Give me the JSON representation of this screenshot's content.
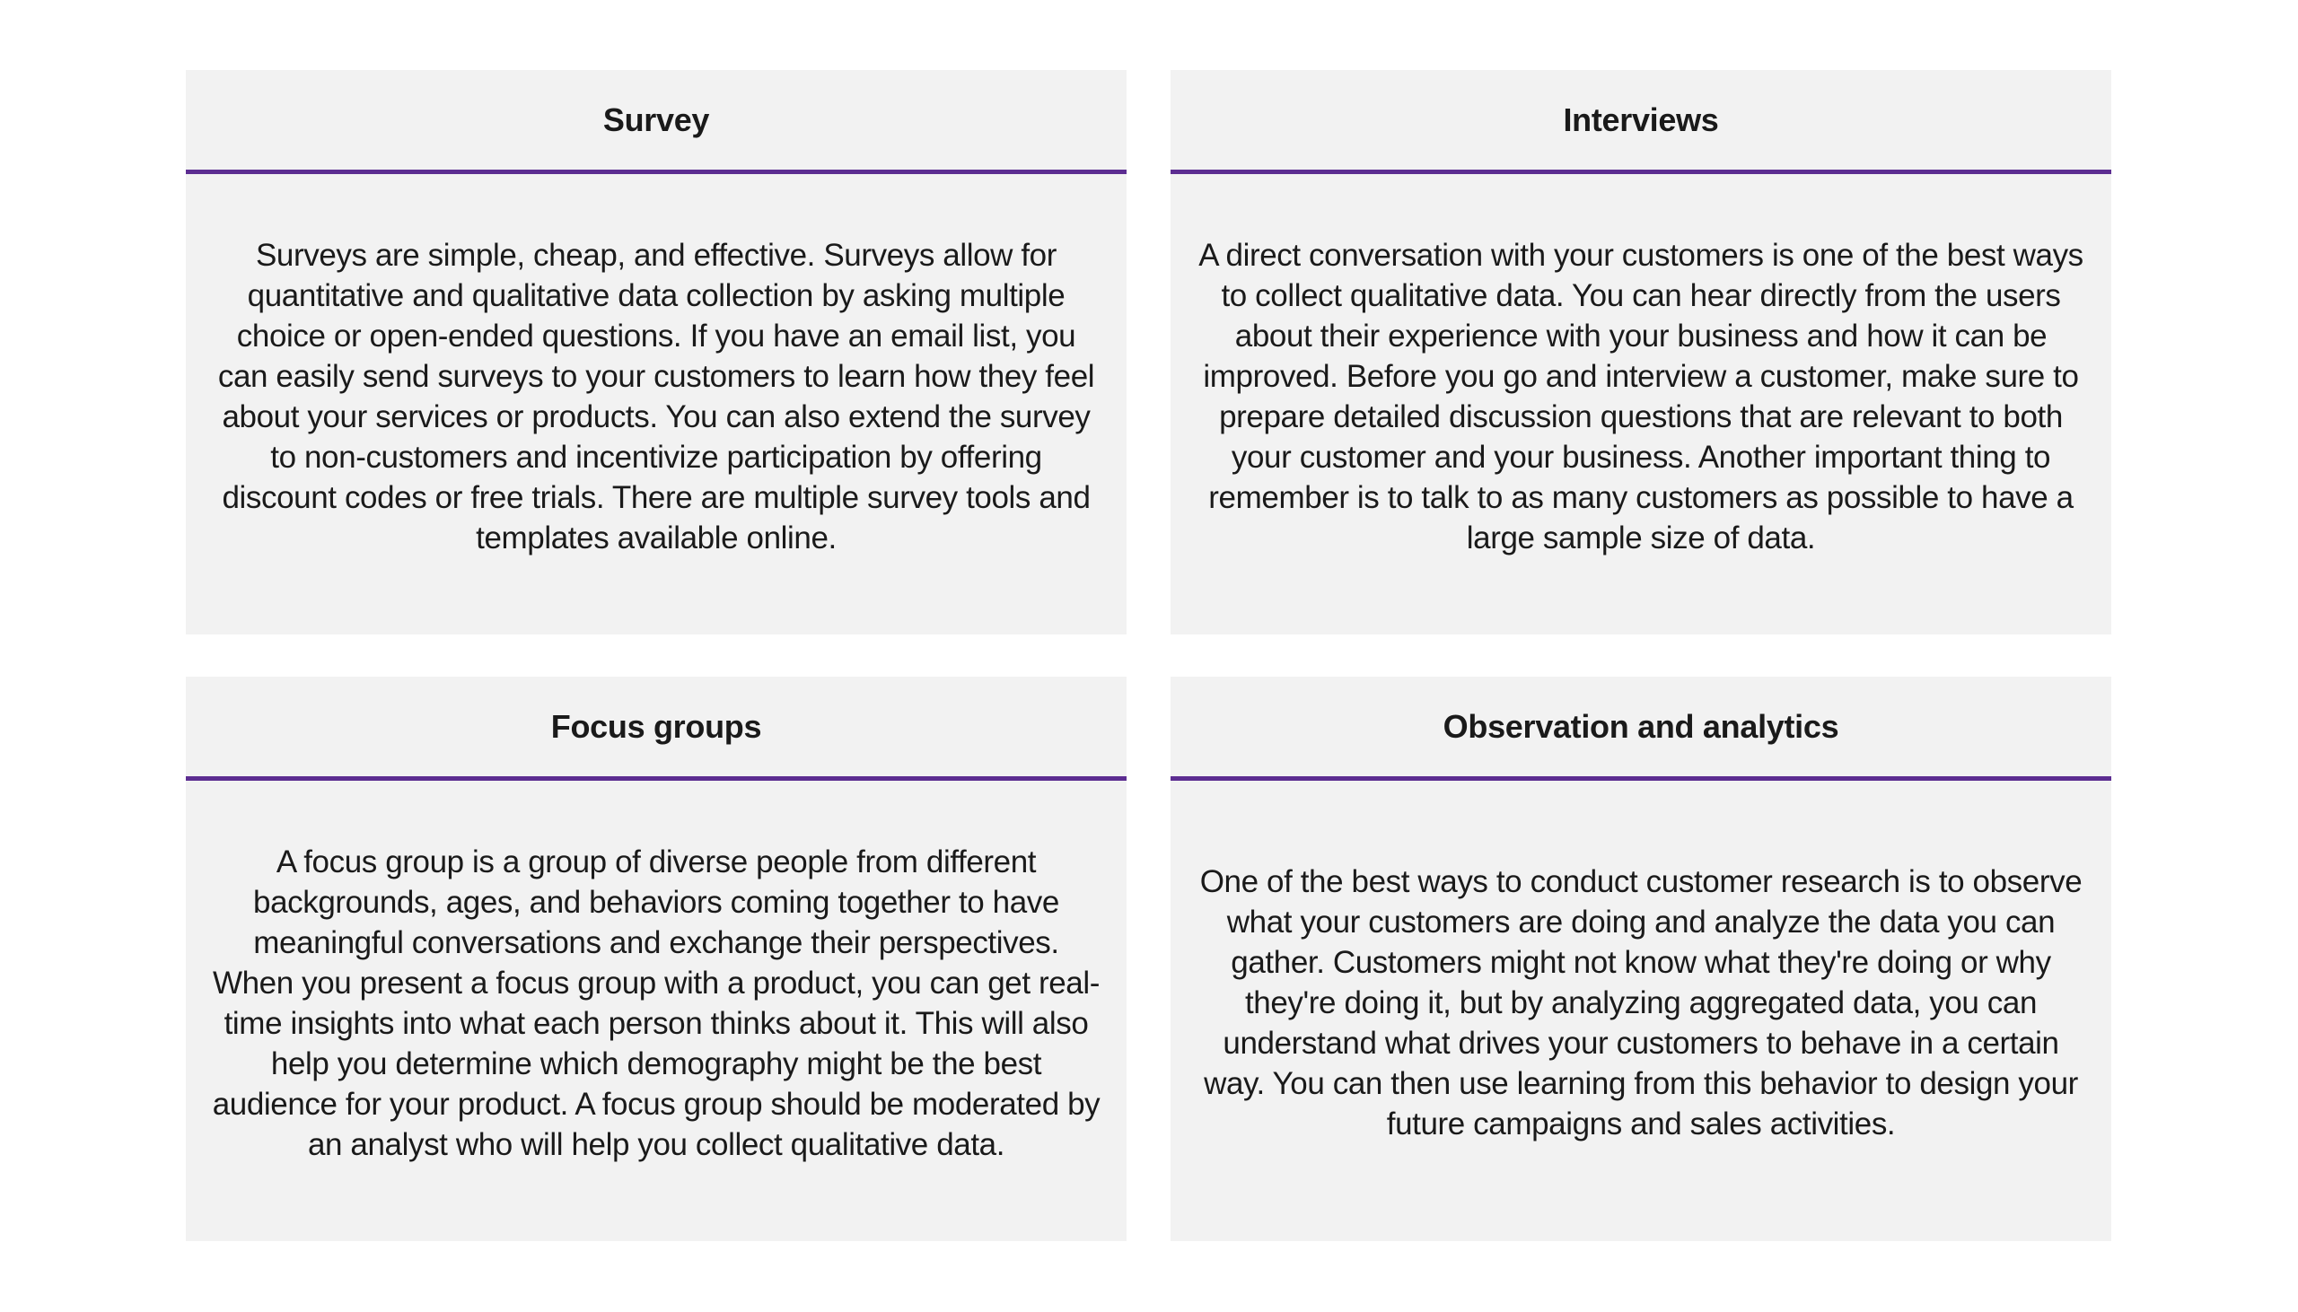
{
  "accent_color": "#5c2d91",
  "cards": [
    {
      "title": "Survey",
      "text": "Surveys are simple, cheap, and effective. Surveys allow for quantitative and qualitative data collection by asking multiple choice or open-ended questions. If you have an email list, you can easily send surveys to your customers to learn how they feel about your services or products. You can also extend the survey to non-customers and incentivize participation by offering discount codes or free trials. There are multiple survey tools and templates available online."
    },
    {
      "title": "Interviews",
      "text": "A direct conversation with your customers is one of the best ways to collect qualitative data. You can hear directly from the users about their experience with your business and how it can be improved. Before you go and interview a customer, make sure to prepare detailed discussion questions that are relevant to both your customer and your business. Another important thing to remember is to talk to as many customers as possible to have a large sample size of data."
    },
    {
      "title": "Focus groups",
      "text": "A focus group is a group of diverse people from different backgrounds, ages, and behaviors coming together to have meaningful conversations and exchange their perspectives. When you present a focus group with a product, you can get real-time insights into what each person thinks about it. This will also help you determine which demography might be the best audience for your product. A focus group should be moderated by an analyst who will help you collect qualitative data."
    },
    {
      "title": "Observation and analytics",
      "text": "One of the best ways to conduct customer research is to observe what your customers are doing and analyze the data you can gather. Customers might not know what they're doing or why they're doing it, but by analyzing aggregated data, you can understand what drives your customers to behave in a certain way. You can then use learning from this behavior to design your future campaigns and sales activities."
    }
  ]
}
